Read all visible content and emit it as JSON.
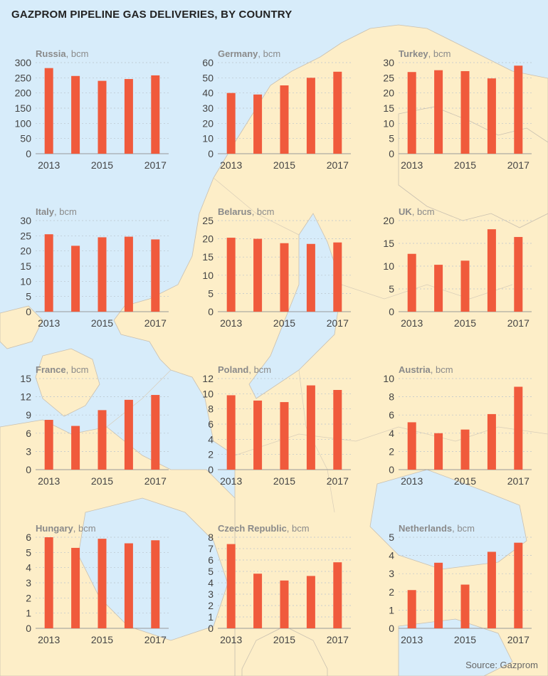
{
  "title": "GAZPROM PIPELINE GAS DELIVERIES, BY COUNTRY",
  "source": "Source: Gazprom",
  "colors": {
    "bar": "#f05a3c",
    "sea": "#d7ecfa",
    "land": "#fdeec8",
    "border": "#c9c0b0"
  },
  "chart_data": [
    {
      "type": "bar",
      "title": "Russia",
      "unit": ", bcm",
      "x": [
        2013,
        2014,
        2015,
        2016,
        2017
      ],
      "values": [
        282,
        256,
        240,
        246,
        258
      ],
      "ylim": [
        0,
        300
      ],
      "yticks": [
        0,
        50,
        100,
        150,
        200,
        250,
        300
      ],
      "xticklabels": [
        "2013",
        "2015",
        "2017"
      ]
    },
    {
      "type": "bar",
      "title": "Germany",
      "unit": ", bcm",
      "x": [
        2013,
        2014,
        2015,
        2016,
        2017
      ],
      "values": [
        40,
        39,
        45,
        50,
        54
      ],
      "ylim": [
        0,
        60
      ],
      "yticks": [
        0,
        10,
        20,
        30,
        40,
        50,
        60
      ],
      "xticklabels": [
        "2013",
        "2015",
        "2017"
      ]
    },
    {
      "type": "bar",
      "title": "Turkey",
      "unit": ", bcm",
      "x": [
        2013,
        2014,
        2015,
        2016,
        2017
      ],
      "values": [
        26.9,
        27.5,
        27.2,
        24.8,
        29.0
      ],
      "ylim": [
        0,
        30
      ],
      "yticks": [
        0,
        5,
        10,
        15,
        20,
        25,
        30
      ],
      "xticklabels": [
        "2013",
        "2015",
        "2017"
      ]
    },
    {
      "type": "bar",
      "title": "Italy",
      "unit": ", bcm",
      "x": [
        2013,
        2014,
        2015,
        2016,
        2017
      ],
      "values": [
        25.5,
        21.7,
        24.5,
        24.7,
        23.8
      ],
      "ylim": [
        0,
        30
      ],
      "yticks": [
        0,
        5,
        10,
        15,
        20,
        25,
        30
      ],
      "xticklabels": [
        "2013",
        "2015",
        "2017"
      ]
    },
    {
      "type": "bar",
      "title": "Belarus",
      "unit": ", bcm",
      "x": [
        2013,
        2014,
        2015,
        2016,
        2017
      ],
      "values": [
        20.3,
        20.0,
        18.8,
        18.6,
        19.0
      ],
      "ylim": [
        0,
        25
      ],
      "yticks": [
        0,
        5,
        10,
        15,
        20,
        25
      ],
      "xticklabels": [
        "2013",
        "2015",
        "2017"
      ]
    },
    {
      "type": "bar",
      "title": "UK",
      "unit": ", bcm",
      "x": [
        2013,
        2014,
        2015,
        2016,
        2017
      ],
      "values": [
        12.7,
        10.3,
        11.2,
        18.1,
        16.4
      ],
      "ylim": [
        0,
        20
      ],
      "yticks": [
        0,
        5,
        10,
        15,
        20
      ],
      "xticklabels": [
        "2013",
        "2015",
        "2017"
      ]
    },
    {
      "type": "bar",
      "title": "France",
      "unit": ", bcm",
      "x": [
        2013,
        2014,
        2015,
        2016,
        2017
      ],
      "values": [
        8.2,
        7.2,
        9.8,
        11.5,
        12.3
      ],
      "ylim": [
        0,
        15
      ],
      "yticks": [
        0,
        3,
        6,
        9,
        12,
        15
      ],
      "xticklabels": [
        "2013",
        "2015",
        "2017"
      ]
    },
    {
      "type": "bar",
      "title": "Poland",
      "unit": ", bcm",
      "x": [
        2013,
        2014,
        2015,
        2016,
        2017
      ],
      "values": [
        9.8,
        9.1,
        8.9,
        11.1,
        10.5
      ],
      "ylim": [
        0,
        12
      ],
      "yticks": [
        0,
        2,
        4,
        6,
        8,
        10,
        12
      ],
      "xticklabels": [
        "2013",
        "2015",
        "2017"
      ]
    },
    {
      "type": "bar",
      "title": "Austria",
      "unit": ", bcm",
      "x": [
        2013,
        2014,
        2015,
        2016,
        2017
      ],
      "values": [
        5.2,
        4.0,
        4.4,
        6.1,
        9.1
      ],
      "ylim": [
        0,
        10
      ],
      "yticks": [
        0,
        2,
        4,
        6,
        8,
        10
      ],
      "xticklabels": [
        "2013",
        "2015",
        "2017"
      ]
    },
    {
      "type": "bar",
      "title": "Hungary",
      "unit": ", bcm",
      "x": [
        2013,
        2014,
        2015,
        2016,
        2017
      ],
      "values": [
        6.0,
        5.3,
        5.9,
        5.6,
        5.8
      ],
      "ylim": [
        0,
        6
      ],
      "yticks": [
        0,
        1,
        2,
        3,
        4,
        5,
        6
      ],
      "xticklabels": [
        "2013",
        "2015",
        "2017"
      ]
    },
    {
      "type": "bar",
      "title": "Czech Republic",
      "unit": ", bcm",
      "x": [
        2013,
        2014,
        2015,
        2016,
        2017
      ],
      "values": [
        7.4,
        4.8,
        4.2,
        4.6,
        5.8
      ],
      "ylim": [
        0,
        8
      ],
      "yticks": [
        0,
        1,
        2,
        3,
        4,
        5,
        6,
        7,
        8
      ],
      "xticklabels": [
        "2013",
        "2015",
        "2017"
      ]
    },
    {
      "type": "bar",
      "title": "Netherlands",
      "unit": ", bcm",
      "x": [
        2013,
        2014,
        2015,
        2016,
        2017
      ],
      "values": [
        2.1,
        3.6,
        2.4,
        4.2,
        4.7
      ],
      "ylim": [
        0,
        5
      ],
      "yticks": [
        0,
        1,
        2,
        3,
        4,
        5
      ],
      "xticklabels": [
        "2013",
        "2015",
        "2017"
      ]
    }
  ]
}
